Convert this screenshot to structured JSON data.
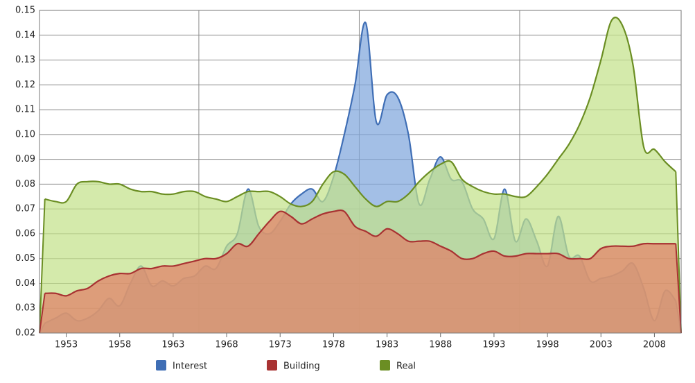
{
  "chart_data": {
    "type": "area",
    "x": [
      1951,
      1952,
      1953,
      1954,
      1955,
      1956,
      1957,
      1958,
      1959,
      1960,
      1961,
      1962,
      1963,
      1964,
      1965,
      1966,
      1967,
      1968,
      1969,
      1970,
      1971,
      1972,
      1973,
      1974,
      1975,
      1976,
      1977,
      1978,
      1979,
      1980,
      1981,
      1982,
      1983,
      1984,
      1985,
      1986,
      1987,
      1988,
      1989,
      1990,
      1991,
      1992,
      1993,
      1994,
      1995,
      1996,
      1997,
      1998,
      1999,
      2000,
      2001,
      2002,
      2003,
      2004,
      2005,
      2006,
      2007,
      2008,
      2009,
      2010
    ],
    "series": [
      {
        "name": "Interest",
        "color": "#3f6eb5",
        "fill": "#7fa6dc",
        "values": [
          0.024,
          0.026,
          0.028,
          0.025,
          0.026,
          0.029,
          0.034,
          0.031,
          0.04,
          0.047,
          0.039,
          0.041,
          0.039,
          0.042,
          0.043,
          0.047,
          0.046,
          0.055,
          0.06,
          0.078,
          0.063,
          0.06,
          0.065,
          0.072,
          0.076,
          0.078,
          0.073,
          0.083,
          0.1,
          0.12,
          0.145,
          0.105,
          0.116,
          0.115,
          0.1,
          0.072,
          0.082,
          0.091,
          0.082,
          0.081,
          0.07,
          0.066,
          0.058,
          0.078,
          0.057,
          0.066,
          0.057,
          0.047,
          0.067,
          0.051,
          0.051,
          0.041,
          0.042,
          0.043,
          0.045,
          0.048,
          0.038,
          0.025,
          0.037,
          0.033
        ]
      },
      {
        "name": "Real",
        "color": "#6b8e23",
        "fill": "#c3e28a",
        "values": [
          0.074,
          0.073,
          0.073,
          0.08,
          0.081,
          0.081,
          0.08,
          0.08,
          0.078,
          0.077,
          0.077,
          0.076,
          0.076,
          0.077,
          0.077,
          0.075,
          0.074,
          0.073,
          0.075,
          0.077,
          0.077,
          0.077,
          0.075,
          0.072,
          0.071,
          0.073,
          0.08,
          0.085,
          0.084,
          0.079,
          0.074,
          0.071,
          0.073,
          0.073,
          0.076,
          0.081,
          0.085,
          0.088,
          0.089,
          0.082,
          0.079,
          0.077,
          0.076,
          0.076,
          0.075,
          0.075,
          0.079,
          0.084,
          0.09,
          0.096,
          0.104,
          0.115,
          0.13,
          0.146,
          0.144,
          0.128,
          0.095,
          0.094,
          0.089,
          0.085
        ]
      },
      {
        "name": "Building",
        "color": "#a83232",
        "fill": "#e07f66",
        "values": [
          0.036,
          0.036,
          0.035,
          0.037,
          0.038,
          0.041,
          0.043,
          0.044,
          0.044,
          0.046,
          0.046,
          0.047,
          0.047,
          0.048,
          0.049,
          0.05,
          0.05,
          0.052,
          0.056,
          0.055,
          0.06,
          0.065,
          0.069,
          0.067,
          0.064,
          0.066,
          0.068,
          0.069,
          0.069,
          0.063,
          0.061,
          0.059,
          0.062,
          0.06,
          0.057,
          0.057,
          0.057,
          0.055,
          0.053,
          0.05,
          0.05,
          0.052,
          0.053,
          0.051,
          0.051,
          0.052,
          0.052,
          0.052,
          0.052,
          0.05,
          0.05,
          0.05,
          0.054,
          0.055,
          0.055,
          0.055,
          0.056,
          0.056,
          0.056,
          0.056
        ]
      }
    ],
    "xlim": [
      1950.5,
      2010.5
    ],
    "xticks": [
      1953,
      1958,
      1963,
      1968,
      1973,
      1978,
      1983,
      1988,
      1993,
      1998,
      2003,
      2008
    ],
    "xgrid": [
      1965.4,
      1980.4,
      1995.4
    ],
    "ylim": [
      0.02,
      0.15
    ],
    "yticks": [
      0.02,
      0.03,
      0.04,
      0.05,
      0.06,
      0.07,
      0.08,
      0.09,
      {
        "value": 0.1,
        "label": "0.10"
      },
      0.11,
      0.12,
      0.13,
      0.14,
      0.15
    ],
    "grid": true
  }
}
